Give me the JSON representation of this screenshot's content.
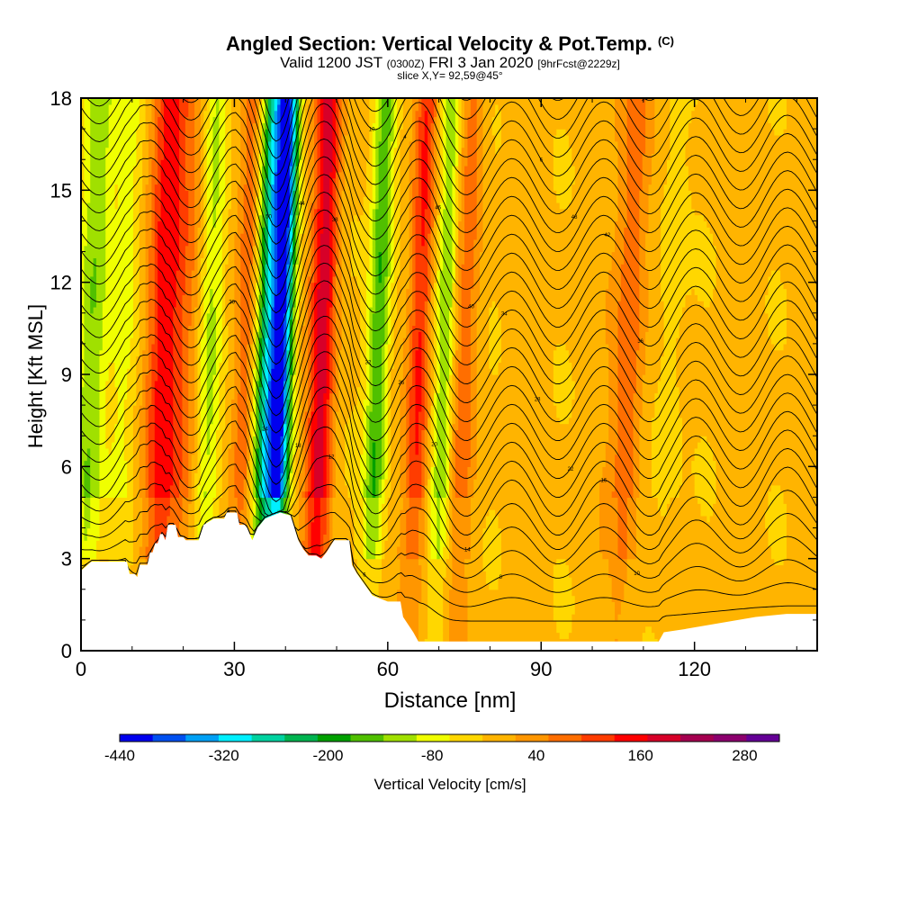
{
  "header": {
    "title": "Angled Section: Vertical Velocity & Pot.Temp.",
    "title_unit": "(C)",
    "subtitle_pre": "Valid 1200 JST",
    "subtitle_utc": "(0300Z)",
    "subtitle_date": "FRI 3 Jan 2020",
    "subtitle_fcst": "[9hrFcst@2229z]",
    "slice": "slice X,Y= 92,59@45°"
  },
  "chart_data": {
    "type": "heatmap",
    "title": "Angled Section: Vertical Velocity & Pot.Temp.",
    "xlabel": "Distance [nm]",
    "ylabel": "Height [Kft MSL]",
    "xlim": [
      0,
      144
    ],
    "ylim": [
      0,
      18
    ],
    "x_ticks": [
      0,
      30,
      60,
      90,
      120
    ],
    "y_ticks": [
      0,
      3,
      6,
      9,
      12,
      15,
      18
    ],
    "colorbar": {
      "label": "Vertical Velocity [cm/s]",
      "min": -440,
      "max": 320,
      "step": 40,
      "tick_labels": [
        "-440",
        "-320",
        "-200",
        "-80",
        "40",
        "160",
        "280"
      ],
      "colors": [
        "#0000ee",
        "#0050f0",
        "#00a0f5",
        "#00f0ff",
        "#00d2a0",
        "#00b450",
        "#00a000",
        "#50c000",
        "#a0e000",
        "#f0ff00",
        "#ffd700",
        "#ffb400",
        "#ff9600",
        "#ff6e00",
        "#ff3c00",
        "#ff0000",
        "#d70028",
        "#a50050",
        "#8c006e",
        "#640096"
      ]
    },
    "velocity_features": [
      {
        "x_nm": 2,
        "width_nm": 3,
        "w_cm_s": -140
      },
      {
        "x_nm": 8,
        "width_nm": 3,
        "w_cm_s": -60
      },
      {
        "x_nm": 16,
        "width_nm": 3.5,
        "w_cm_s": 160
      },
      {
        "x_nm": 21,
        "width_nm": 3,
        "w_cm_s": 60
      },
      {
        "x_nm": 25,
        "width_nm": 2.5,
        "w_cm_s": -100
      },
      {
        "x_nm": 32,
        "width_nm": 2,
        "w_cm_s": 80
      },
      {
        "x_nm": 36,
        "width_nm": 2.2,
        "w_cm_s": -220
      },
      {
        "x_nm": 39,
        "width_nm": 2.2,
        "w_cm_s": -420
      },
      {
        "x_nm": 47,
        "width_nm": 2.5,
        "w_cm_s": 200
      },
      {
        "x_nm": 58,
        "width_nm": 2.2,
        "w_cm_s": -180
      },
      {
        "x_nm": 66,
        "width_nm": 2.2,
        "w_cm_s": 160
      },
      {
        "x_nm": 71,
        "width_nm": 2,
        "w_cm_s": -140
      },
      {
        "x_nm": 75,
        "width_nm": 2.5,
        "w_cm_s": 80
      },
      {
        "x_nm": 107,
        "width_nm": 3,
        "w_cm_s": 100
      },
      {
        "x_nm": 115,
        "width_nm": 3,
        "w_cm_s": -40
      }
    ],
    "isentrope_labels": [
      "4",
      "6",
      "8",
      "10",
      "12",
      "14",
      "16",
      "18",
      "20",
      "22",
      "24",
      "26",
      "28",
      "30",
      "32",
      "34",
      "36",
      "38",
      "40",
      "42",
      "44",
      "46",
      "48",
      "50"
    ]
  }
}
